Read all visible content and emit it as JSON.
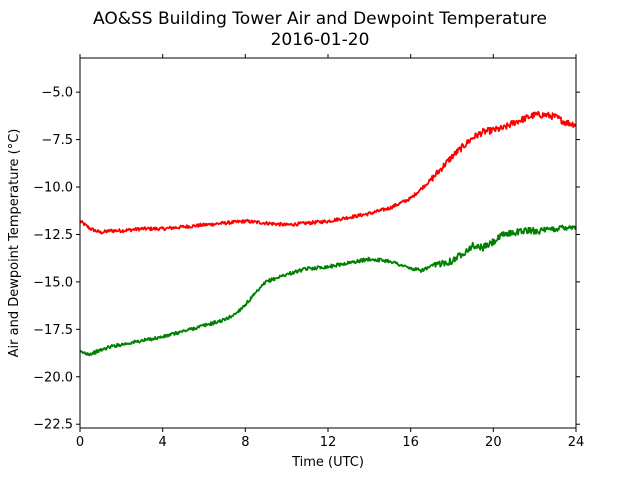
{
  "chart_data": {
    "type": "line",
    "title": "AO&SS Building Tower Air and Dewpoint Temperature",
    "subtitle": "2016-01-20",
    "xlabel": "Time (UTC)",
    "ylabel": "Air and Dewpoint Temperature (°C)",
    "xlim": [
      0,
      24
    ],
    "ylim": [
      -22.7,
      -3.2
    ],
    "xticks": [
      0,
      4,
      8,
      12,
      16,
      20,
      24
    ],
    "xtick_labels": [
      "0",
      "4",
      "8",
      "12",
      "16",
      "20",
      "24"
    ],
    "yticks": [
      -22.5,
      -20.0,
      -17.5,
      -15.0,
      -12.5,
      -10.0,
      -7.5,
      -5.0
    ],
    "ytick_labels": [
      "−22.5",
      "−20.0",
      "−17.5",
      "−15.0",
      "−12.5",
      "−10.0",
      "−7.5",
      "−5.0"
    ],
    "grid": false,
    "series": [
      {
        "color": "#ff0000",
        "x": [
          0,
          0.5,
          1,
          1.5,
          2,
          3,
          4,
          5,
          6,
          7,
          8,
          9,
          10,
          11,
          12,
          13,
          14,
          15,
          16,
          16.5,
          17,
          17.5,
          18,
          18.5,
          19,
          19.5,
          20,
          20.5,
          21,
          21.5,
          22,
          22.5,
          23,
          23.5,
          24
        ],
        "y": [
          -11.8,
          -12.2,
          -12.4,
          -12.3,
          -12.3,
          -12.2,
          -12.2,
          -12.1,
          -12.0,
          -11.9,
          -11.8,
          -11.9,
          -12.0,
          -11.9,
          -11.8,
          -11.6,
          -11.4,
          -11.1,
          -10.6,
          -10.1,
          -9.6,
          -9.0,
          -8.4,
          -7.9,
          -7.4,
          -7.1,
          -7.0,
          -6.9,
          -6.6,
          -6.4,
          -6.2,
          -6.2,
          -6.3,
          -6.6,
          -6.7
        ]
      },
      {
        "color": "#008000",
        "x": [
          0,
          0.5,
          1,
          1.5,
          2,
          3,
          4,
          5,
          6,
          7,
          7.5,
          8,
          8.5,
          9,
          10,
          11,
          12,
          13,
          14,
          15,
          15.5,
          16,
          16.5,
          17,
          17.5,
          18,
          18.5,
          19,
          19.5,
          20,
          20.5,
          21,
          21.5,
          22,
          22.5,
          23,
          23.5,
          24
        ],
        "y": [
          -18.7,
          -18.8,
          -18.6,
          -18.4,
          -18.3,
          -18.1,
          -17.9,
          -17.6,
          -17.3,
          -17.0,
          -16.7,
          -16.2,
          -15.6,
          -15.0,
          -14.6,
          -14.3,
          -14.2,
          -14.0,
          -13.8,
          -13.9,
          -14.1,
          -14.3,
          -14.4,
          -14.2,
          -14.0,
          -13.9,
          -13.5,
          -13.1,
          -13.2,
          -12.9,
          -12.5,
          -12.4,
          -12.3,
          -12.3,
          -12.3,
          -12.2,
          -12.1,
          -12.1
        ]
      }
    ]
  }
}
